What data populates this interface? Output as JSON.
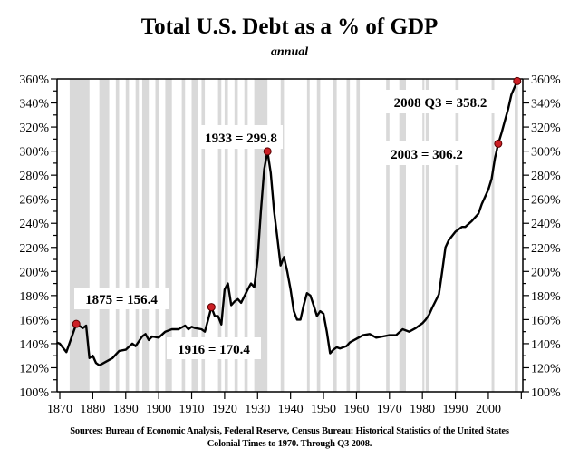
{
  "chart_data": {
    "type": "line",
    "title": "Total U.S. Debt as a % of GDP",
    "subtitle": "annual",
    "xlabel": "",
    "ylabel": "",
    "xlim": [
      1869,
      2010
    ],
    "ylim": [
      100,
      360
    ],
    "x_ticks": [
      1870,
      1880,
      1890,
      1900,
      1910,
      1920,
      1930,
      1940,
      1950,
      1960,
      1970,
      1980,
      1990,
      2000
    ],
    "y_ticks": [
      100,
      120,
      140,
      160,
      180,
      200,
      220,
      240,
      260,
      280,
      300,
      320,
      340,
      360
    ],
    "y_tick_suffix": "%",
    "grid": false,
    "series": [
      {
        "name": "Total U.S. Debt as a % of GDP",
        "color": "#000000",
        "points": [
          [
            1869,
            141
          ],
          [
            1870,
            140
          ],
          [
            1872,
            133
          ],
          [
            1875,
            156.4
          ],
          [
            1877,
            153
          ],
          [
            1878,
            155
          ],
          [
            1879,
            128
          ],
          [
            1880,
            130
          ],
          [
            1881,
            124
          ],
          [
            1882,
            122
          ],
          [
            1884,
            125
          ],
          [
            1886,
            128
          ],
          [
            1888,
            134
          ],
          [
            1890,
            135
          ],
          [
            1892,
            140
          ],
          [
            1893,
            138
          ],
          [
            1895,
            146
          ],
          [
            1896,
            148
          ],
          [
            1897,
            143
          ],
          [
            1898,
            146
          ],
          [
            1900,
            145
          ],
          [
            1902,
            150
          ],
          [
            1904,
            152
          ],
          [
            1906,
            152
          ],
          [
            1908,
            155
          ],
          [
            1909,
            152
          ],
          [
            1910,
            154
          ],
          [
            1911,
            153
          ],
          [
            1913,
            152
          ],
          [
            1914,
            150
          ],
          [
            1915,
            160
          ],
          [
            1916,
            170.4
          ],
          [
            1917,
            163
          ],
          [
            1918,
            163
          ],
          [
            1919,
            156
          ],
          [
            1920,
            185
          ],
          [
            1921,
            190
          ],
          [
            1922,
            172
          ],
          [
            1923,
            175
          ],
          [
            1924,
            177
          ],
          [
            1925,
            174
          ],
          [
            1927,
            185
          ],
          [
            1928,
            190
          ],
          [
            1929,
            187
          ],
          [
            1930,
            210
          ],
          [
            1931,
            250
          ],
          [
            1932,
            285
          ],
          [
            1933,
            299.8
          ],
          [
            1934,
            282
          ],
          [
            1935,
            250
          ],
          [
            1936,
            228
          ],
          [
            1937,
            205
          ],
          [
            1938,
            212
          ],
          [
            1939,
            200
          ],
          [
            1940,
            185
          ],
          [
            1941,
            167
          ],
          [
            1942,
            160
          ],
          [
            1943,
            160
          ],
          [
            1944,
            172
          ],
          [
            1945,
            182
          ],
          [
            1946,
            180
          ],
          [
            1947,
            172
          ],
          [
            1948,
            163
          ],
          [
            1949,
            167
          ],
          [
            1950,
            165
          ],
          [
            1951,
            150
          ],
          [
            1952,
            132
          ],
          [
            1953,
            135
          ],
          [
            1954,
            137
          ],
          [
            1955,
            136
          ],
          [
            1956,
            137
          ],
          [
            1957,
            138
          ],
          [
            1958,
            141
          ],
          [
            1960,
            144
          ],
          [
            1962,
            147
          ],
          [
            1964,
            148
          ],
          [
            1966,
            145
          ],
          [
            1968,
            146
          ],
          [
            1970,
            147
          ],
          [
            1972,
            147
          ],
          [
            1974,
            152
          ],
          [
            1976,
            150
          ],
          [
            1978,
            153
          ],
          [
            1980,
            157
          ],
          [
            1981,
            160
          ],
          [
            1982,
            164
          ],
          [
            1983,
            170
          ],
          [
            1985,
            181
          ],
          [
            1986,
            200
          ],
          [
            1987,
            220
          ],
          [
            1988,
            226
          ],
          [
            1990,
            233
          ],
          [
            1992,
            237
          ],
          [
            1993,
            237
          ],
          [
            1995,
            242
          ],
          [
            1997,
            248
          ],
          [
            1998,
            256
          ],
          [
            2000,
            268
          ],
          [
            2001,
            277
          ],
          [
            2002,
            294
          ],
          [
            2003,
            306.2
          ],
          [
            2004,
            315
          ],
          [
            2005,
            325
          ],
          [
            2006,
            335
          ],
          [
            2007,
            347
          ],
          [
            2008.75,
            358.2
          ]
        ]
      }
    ],
    "highlight_color": "#cc1f25",
    "shade_color": "#d9d9d9",
    "shaded_periods": [
      [
        1873,
        1879
      ],
      [
        1882,
        1885
      ],
      [
        1887,
        1888
      ],
      [
        1890,
        1891
      ],
      [
        1893,
        1894
      ],
      [
        1895,
        1897
      ],
      [
        1899,
        1900
      ],
      [
        1902,
        1904
      ],
      [
        1907,
        1908
      ],
      [
        1910,
        1912
      ],
      [
        1913,
        1914
      ],
      [
        1918,
        1919
      ],
      [
        1920,
        1921
      ],
      [
        1923,
        1924
      ],
      [
        1926,
        1927
      ],
      [
        1929,
        1933
      ],
      [
        1937,
        1938
      ],
      [
        1945,
        1945.8
      ],
      [
        1948,
        1949
      ],
      [
        1953,
        1954
      ],
      [
        1957,
        1958
      ],
      [
        1960,
        1961
      ],
      [
        1969,
        1970
      ],
      [
        1973,
        1975
      ],
      [
        1980,
        1980.6
      ],
      [
        1981,
        1982
      ],
      [
        1990,
        1991
      ],
      [
        2001,
        2001.8
      ],
      [
        2008,
        2009
      ]
    ],
    "annotations": [
      {
        "text": "1875 = 156.4",
        "x": 1875,
        "y": 156.4
      },
      {
        "text": "1916 = 170.4",
        "x": 1916,
        "y": 170.4
      },
      {
        "text": "1933 = 299.8",
        "x": 1933,
        "y": 299.8
      },
      {
        "text": "2003 = 306.2",
        "x": 2003,
        "y": 306.2
      },
      {
        "text": "2008 Q3 = 358.2",
        "x": 2008.75,
        "y": 358.2
      }
    ],
    "source": "Sources: Bureau of Economic Analysis, Federal Reserve, Census Bureau: Historical Statistics of the United States",
    "source_line2": "Colonial Times to 1970.   Through Q3 2008."
  }
}
